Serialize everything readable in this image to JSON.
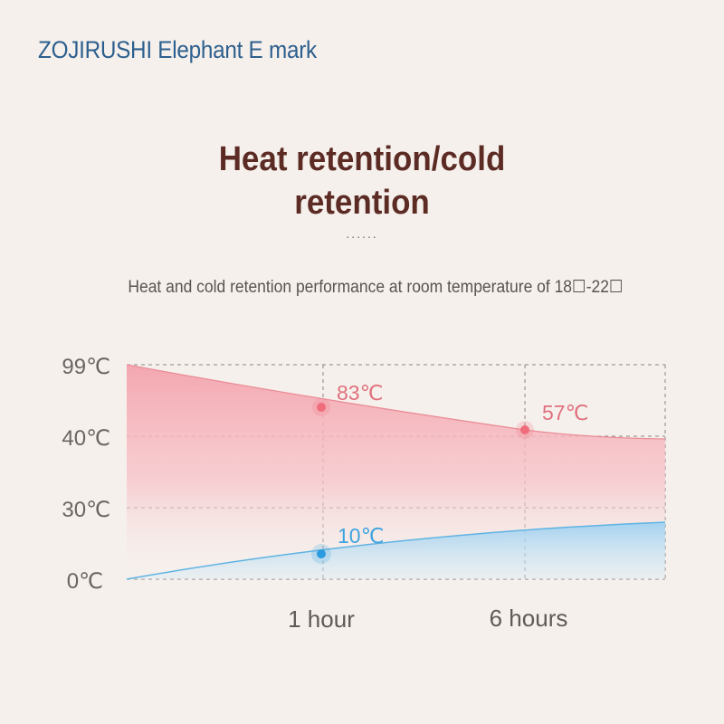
{
  "brand": "ZOJIRUSHI Elephant E mark",
  "title_line1": "Heat retention/cold",
  "title_line2": "retention",
  "dots": "......",
  "subtitle": "Heat and cold retention performance at room temperature of 18☐-22☐",
  "colors": {
    "hot": "#f07f8c",
    "cold": "#3ea3df",
    "grid": "#8a8684"
  },
  "chart_data": {
    "type": "area",
    "y_tick_labels": [
      "99℃",
      "40℃",
      "30℃",
      "0℃"
    ],
    "x_tick_labels": [
      "1 hour",
      "6 hours"
    ],
    "grid": true,
    "series": [
      {
        "points": [
          {
            "x": "1 hour",
            "y": 83,
            "label": "83℃"
          },
          {
            "x": "6 hours",
            "y": 57,
            "label": "57℃"
          }
        ]
      },
      {
        "points": [
          {
            "x": "1 hour",
            "y": 10,
            "label": "10℃"
          }
        ]
      }
    ]
  }
}
